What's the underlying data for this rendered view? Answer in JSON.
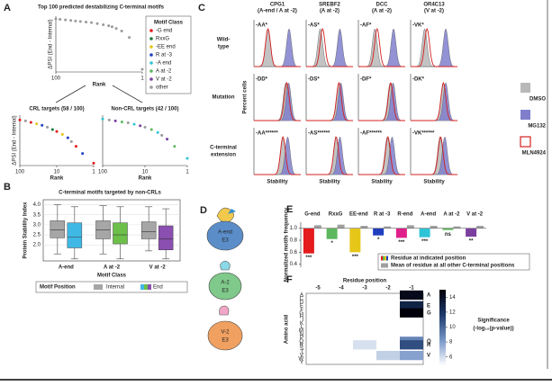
{
  "figure": {
    "a": {
      "label": "A",
      "title": "Top 100 predicted destabilizing C-terminal motifs",
      "top": {
        "ylabel": "ΔPSI (End - Internal)",
        "xlabel": "Rank",
        "log_x": true,
        "xlim": [
          100,
          1
        ],
        "xticks": [
          100,
          1
        ],
        "ylim": [
          -1.05,
          0
        ],
        "color": "#9a9a9a",
        "x": [
          100,
          80,
          60,
          45,
          35,
          27,
          20,
          15,
          11,
          8,
          6,
          5,
          4,
          3,
          2,
          1
        ],
        "y": [
          -0.05,
          -0.06,
          -0.07,
          -0.08,
          -0.09,
          -0.1,
          -0.11,
          -0.12,
          -0.14,
          -0.16,
          -0.18,
          -0.2,
          -0.23,
          -0.28,
          -0.4,
          -1.0
        ]
      },
      "legend": {
        "title": "Motif Class",
        "items": [
          {
            "name": "-G end",
            "color": "#e41a1c"
          },
          {
            "name": "RxxG",
            "color": "#1b7a3b"
          },
          {
            "name": "-EE end",
            "color": "#e6c619"
          },
          {
            "name": "R at -3",
            "color": "#1f3fbf"
          },
          {
            "name": "-A end",
            "color": "#2ec4d6"
          },
          {
            "name": "A at -2",
            "color": "#5cb85c"
          },
          {
            "name": "V at -2",
            "color": "#7b3fa0"
          },
          {
            "name": "other",
            "color": "#9a9a9a"
          }
        ]
      },
      "crl": {
        "title": "CRL targets (58 / 100)",
        "ylabel": "ΔPSI (End - Internal)",
        "xlabel": "Rank",
        "log_x": true,
        "xlim": [
          100,
          1
        ],
        "xticks": [
          100,
          10,
          1
        ],
        "ylim": [
          -1.05,
          0
        ],
        "x": [
          100,
          70,
          50,
          35,
          25,
          18,
          13,
          10,
          7,
          5,
          4,
          3,
          2,
          1
        ],
        "y": [
          -0.1,
          -0.12,
          -0.15,
          -0.18,
          -0.21,
          -0.25,
          -0.3,
          -0.34,
          -0.4,
          -0.47,
          -0.55,
          -0.65,
          -0.8,
          -1.0
        ],
        "colors": [
          "#e41a1c",
          "#9a9a9a",
          "#e41a1c",
          "#e6c619",
          "#1f3fbf",
          "#9a9a9a",
          "#1b7a3b",
          "#e41a1c",
          "#e6c619",
          "#1f3fbf",
          "#9a9a9a",
          "#e41a1c",
          "#1f3fbf",
          "#e41a1c"
        ]
      },
      "noncrl": {
        "title": "Non-CRL targets (42 / 100)",
        "xlabel": "Rank",
        "log_x": true,
        "xlim": [
          100,
          1
        ],
        "xticks": [
          100,
          10,
          1
        ],
        "ylim": [
          -1.05,
          0
        ],
        "x": [
          100,
          70,
          50,
          35,
          25,
          18,
          13,
          10,
          7,
          5,
          4,
          3,
          2,
          1
        ],
        "y": [
          -0.08,
          -0.1,
          -0.12,
          -0.14,
          -0.16,
          -0.19,
          -0.22,
          -0.25,
          -0.3,
          -0.36,
          -0.42,
          -0.5,
          -0.65,
          -0.9
        ],
        "colors": [
          "#2ec4d6",
          "#9a9a9a",
          "#7b3fa0",
          "#5cb85c",
          "#9a9a9a",
          "#2ec4d6",
          "#7b3fa0",
          "#9a9a9a",
          "#5cb85c",
          "#2ec4d6",
          "#9a9a9a",
          "#7b3fa0",
          "#5cb85c",
          "#2ec4d6"
        ]
      }
    },
    "b": {
      "label": "B",
      "title": "C-terminal motifs targeted by non-CRLs",
      "ylabel": "Protein Stability Index",
      "xlabel": "Motif Class",
      "ylim": [
        1.2,
        4.25
      ],
      "yticks": [
        {
          "value": 2,
          "label": "2.0"
        },
        2.5,
        {
          "value": 3,
          "label": "3.0"
        },
        3.5,
        {
          "value": 4,
          "label": "4.0"
        }
      ],
      "categories": [
        "A-end",
        "A at -2",
        "V at -2"
      ],
      "legend_title": "Motif Position",
      "groups": [
        {
          "name": "Internal",
          "colors": [
            "#a6a6a6",
            "#a6a6a6",
            "#a6a6a6"
          ],
          "boxes": [
            [
              1.55,
              2.35,
              2.75,
              3.2,
              4.0
            ],
            [
              1.55,
              2.3,
              2.75,
              3.2,
              3.95
            ],
            [
              1.7,
              2.3,
              2.65,
              3.15,
              3.9
            ]
          ]
        },
        {
          "name": "End",
          "colors": [
            "#3fb8e6",
            "#6cc04a",
            "#8a4fb0"
          ],
          "boxes": [
            [
              1.3,
              1.85,
              2.4,
              3.1,
              3.9
            ],
            [
              1.3,
              2.05,
              2.5,
              3.1,
              3.9
            ],
            [
              1.3,
              1.75,
              2.3,
              2.95,
              3.8
            ]
          ]
        }
      ]
    },
    "c": {
      "label": "C",
      "xlabel": "Stability",
      "ylabel": "Percent cells",
      "columns": [
        {
          "name": "CPG1",
          "sub": "(A-end / A at -2)",
          "color": "#2ec4d6"
        },
        {
          "name": "SREBF2",
          "sub": "(A at -2)",
          "color": "#5cb85c"
        },
        {
          "name": "DCC",
          "sub": "(A at -2)",
          "color": "#5cb85c"
        },
        {
          "name": "OR4C13",
          "sub": "(V at -2)",
          "color": "#7b3fa0"
        }
      ],
      "rows": [
        {
          "name": [
            "Wild-",
            "type"
          ],
          "cells": [
            {
              "label": "-AA*",
              "peaks": [
                0.3,
                0.75,
                0.3
              ]
            },
            {
              "label": "-AS*",
              "peaks": [
                0.3,
                0.72,
                0.35
              ]
            },
            {
              "label": "-AF*",
              "peaks": [
                0.35,
                0.75,
                0.4
              ]
            },
            {
              "label": "-VK*",
              "peaks": [
                0.3,
                0.75,
                0.35
              ]
            }
          ]
        },
        {
          "name": [
            "Mutation"
          ],
          "cells": [
            {
              "label": "-DD*",
              "peaks": [
                0.68,
                0.74,
                0.7
              ]
            },
            {
              "label": "-DS*",
              "peaks": [
                0.7,
                0.74,
                0.7
              ]
            },
            {
              "label": "-DF*",
              "peaks": [
                0.68,
                0.74,
                0.69
              ]
            },
            {
              "label": "-DK*",
              "peaks": [
                0.7,
                0.75,
                0.7
              ]
            }
          ]
        },
        {
          "name": [
            "C-terminal",
            "extension"
          ],
          "cells": [
            {
              "label": "-AA******",
              "peaks": [
                0.62,
                0.72,
                0.62
              ]
            },
            {
              "label": "-AS******",
              "peaks": [
                0.64,
                0.72,
                0.64
              ]
            },
            {
              "label": "-AF******",
              "peaks": [
                0.62,
                0.72,
                0.63
              ]
            },
            {
              "label": "-VK******",
              "peaks": [
                0.63,
                0.73,
                0.64
              ]
            }
          ]
        }
      ],
      "legend": [
        {
          "name": "DMSO",
          "color": "#b8b8b8",
          "style": "fill"
        },
        {
          "name": "MG132",
          "color": "#7f7fcc",
          "style": "fill"
        },
        {
          "name": "MLN4924",
          "color": "#d42020",
          "style": "outline"
        }
      ]
    },
    "d": {
      "label": "D",
      "e3s": [
        [
          "A-end",
          "E3"
        ],
        [
          "A-2",
          "E3"
        ],
        [
          "V-2",
          "E3"
        ]
      ]
    },
    "e": {
      "label": "E",
      "ylabel": "Normalized motifs frequency",
      "ylim": [
        0.35,
        1.1
      ],
      "yticks": [
        0.4,
        0.6,
        0.8,
        {
          "value": 1,
          "label": "1.0"
        }
      ],
      "categories": [
        "G-end",
        "RxxG",
        "EE-end",
        "R at -3",
        "R-end",
        "A-end",
        "A at -2",
        "V at -2"
      ],
      "colors": [
        "#e41a1c",
        "#5cb85c",
        "#e6c619",
        "#1f3fbf",
        "#e0208a",
        "#2ec4d6",
        "#5cb85c",
        "#7b3fa0"
      ],
      "values": [
        0.58,
        0.82,
        0.6,
        0.88,
        0.84,
        0.85,
        0.97,
        0.86
      ],
      "mean": [
        1.05,
        1.06,
        1.04,
        1.03,
        1.05,
        1.04,
        1.03,
        1.04
      ],
      "mean_color": "#a0a0a0",
      "significance": [
        "***",
        "*",
        "***",
        "*",
        "***",
        "***",
        "ns",
        "**"
      ],
      "legend": [
        "Residue at indicated position",
        "Mean of residue at all other C-terminal positions"
      ]
    },
    "f": {
      "label": "F",
      "title": "Residue position",
      "ylabel": "Amino acid",
      "positions": [
        "-5",
        "-4",
        "-3",
        "-2",
        "-1"
      ],
      "residues": [
        "A",
        "C",
        "D",
        "E",
        "F",
        "G",
        "H",
        "I",
        "K",
        "L",
        "M",
        "N",
        "P",
        "Q",
        "R",
        "S",
        "T",
        "V",
        "W",
        "Y"
      ],
      "cells": [
        {
          "col": 4,
          "row": 0,
          "value": 14.5
        },
        {
          "col": 4,
          "row": 3,
          "value": 13
        },
        {
          "col": 4,
          "row": 5,
          "value": 15
        },
        {
          "col": 4,
          "row": 13,
          "value": 9
        },
        {
          "col": 4,
          "row": 14,
          "value": 11
        },
        {
          "col": 4,
          "row": 17,
          "value": 8
        },
        {
          "col": 3,
          "row": 17,
          "value": 6.5
        },
        {
          "col": 2,
          "row": 14,
          "value": 6
        }
      ],
      "clim": [
        5,
        15
      ],
      "cticks": [
        6,
        8,
        10,
        12,
        14
      ],
      "colorbar_label": [
        "Significance",
        "(-log₁₀(p-value))"
      ]
    }
  }
}
